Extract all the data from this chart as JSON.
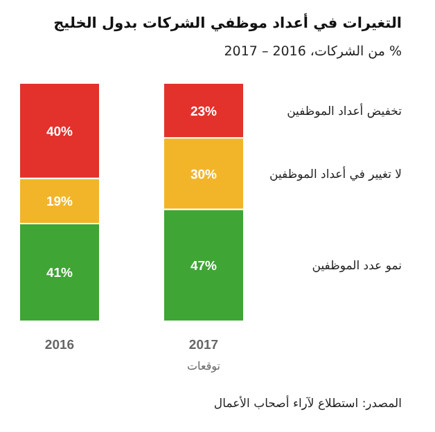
{
  "chart_data": {
    "type": "bar",
    "stacked": true,
    "title": "التغيرات في أعداد موظفي الشركات بدول الخليج",
    "subtitle": "% من الشركات، 2016 – 2017",
    "categories": [
      "2016",
      "2017"
    ],
    "series": [
      {
        "name": "نمو عدد الموظفين",
        "color": "#3fa535",
        "values": [
          41,
          47
        ],
        "value_labels": [
          "41%",
          "47%"
        ]
      },
      {
        "name": "لا تغيير في أعداد الموظفين",
        "color": "#f2b52a",
        "values": [
          19,
          30
        ],
        "value_labels": [
          "19%",
          "30%"
        ]
      },
      {
        "name": "تخفيض أعداد الموظفين",
        "color": "#e3312b",
        "values": [
          40,
          23
        ],
        "value_labels": [
          "40%",
          "23%"
        ]
      }
    ],
    "annotations": [
      "توقعات",
      "المصدر: استطلاع لآراء أصحاب الأعمال"
    ]
  }
}
